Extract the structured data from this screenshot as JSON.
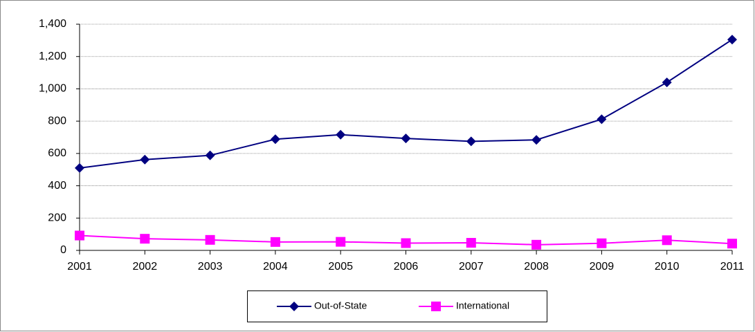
{
  "chart_data": {
    "type": "line",
    "categories": [
      "2001",
      "2002",
      "2003",
      "2004",
      "2005",
      "2006",
      "2007",
      "2008",
      "2009",
      "2010",
      "2011"
    ],
    "series": [
      {
        "name": "Out-of-State",
        "color": "#000080",
        "values": [
          510,
          562,
          588,
          688,
          716,
          693,
          675,
          684,
          812,
          1040,
          1305
        ]
      },
      {
        "name": "International",
        "color": "#ff00ff",
        "values": [
          92,
          72,
          65,
          52,
          53,
          45,
          47,
          35,
          44,
          63,
          42
        ]
      }
    ],
    "ylim": [
      0,
      1400
    ],
    "yticks": [
      0,
      200,
      400,
      600,
      800,
      {
        "value": 1000,
        "label": "1,000"
      },
      {
        "value": 1200,
        "label": "1,200"
      },
      {
        "value": 1400,
        "label": "1,400"
      }
    ],
    "grid": true
  }
}
